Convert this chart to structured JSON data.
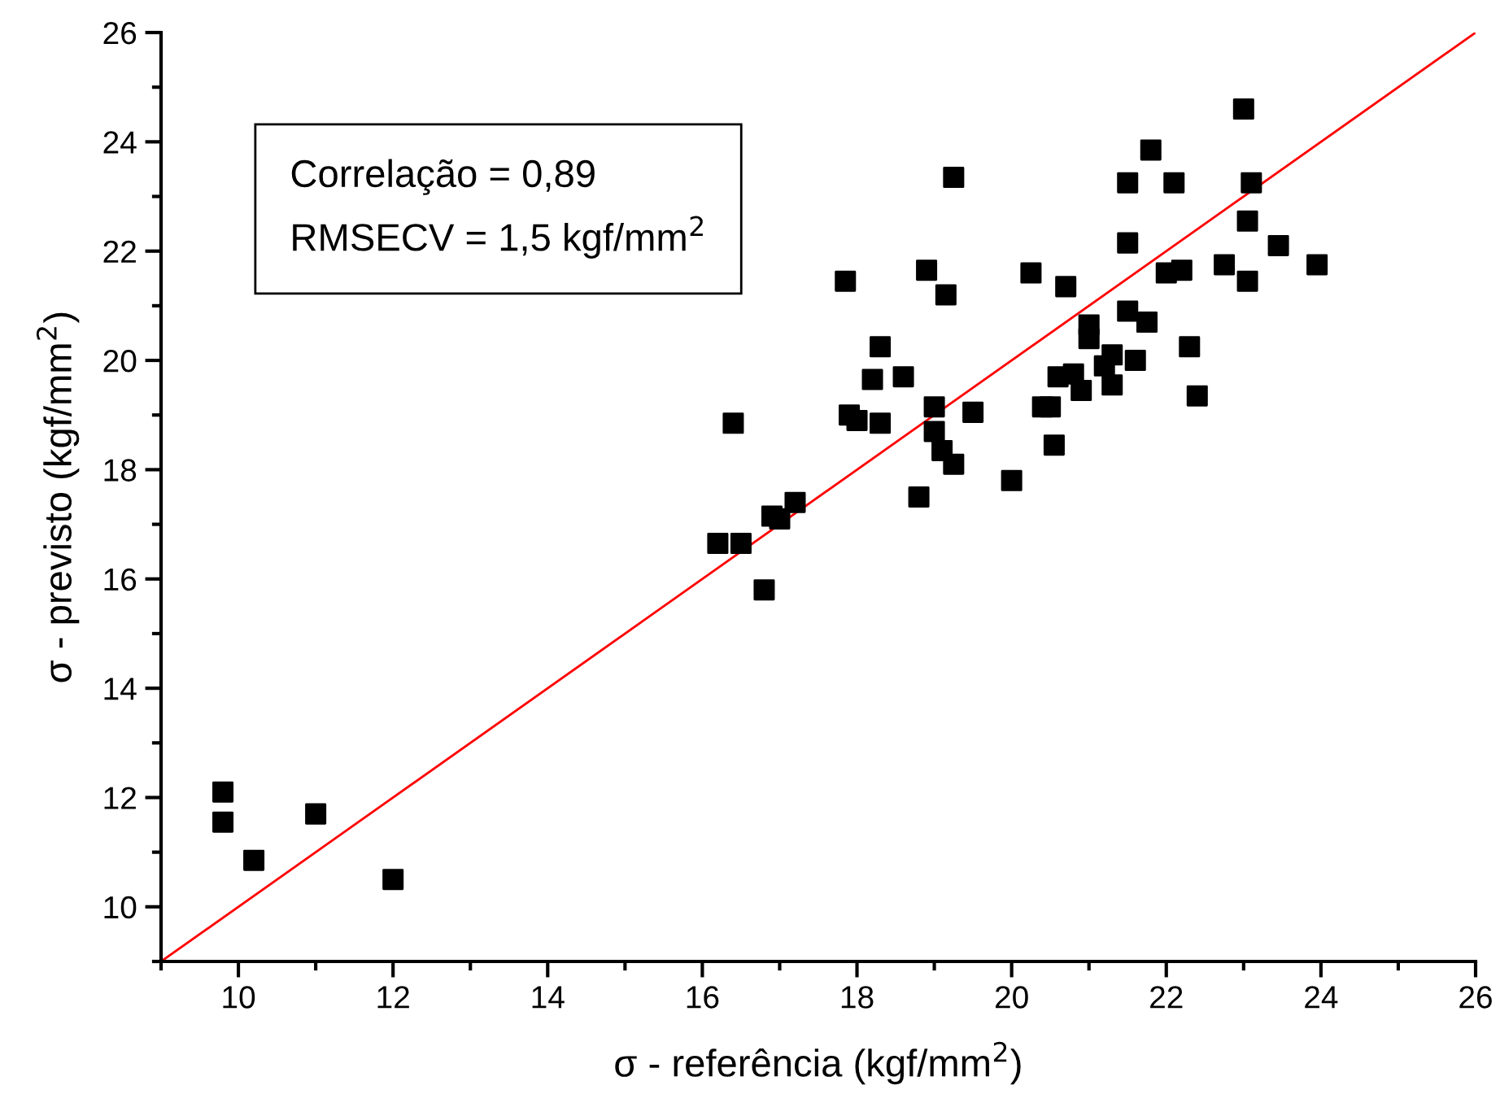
{
  "chart_data": {
    "type": "scatter",
    "xlabel": "σ - referência (kgf/mm$^{2}$)",
    "ylabel": "σ - previsto (kgf/mm$^{2}$)",
    "annotations": [
      "Correlação = 0,89",
      "RMSECV = 1,5 kgf/mm$^{2}$"
    ],
    "xlim": [
      9,
      26
    ],
    "xticks": [
      10,
      12,
      14,
      16,
      18,
      20,
      22,
      24,
      26
    ],
    "ylim": [
      9,
      26
    ],
    "yticks": [
      10,
      12,
      14,
      16,
      18,
      20,
      22,
      24,
      26
    ],
    "grid": false,
    "legend": false,
    "marker": "square",
    "series": [
      {
        "color": "#000000",
        "x": [
          9.8,
          9.8,
          10.2,
          11.0,
          12.0,
          16.2,
          16.5,
          16.4,
          16.8,
          16.9,
          17.0,
          17.2,
          17.85,
          17.9,
          18.0,
          18.2,
          18.3,
          18.3,
          18.6,
          18.8,
          18.9,
          19.0,
          19.0,
          19.1,
          19.15,
          19.25,
          19.25,
          19.5,
          20.0,
          20.25,
          20.4,
          20.5,
          20.55,
          20.6,
          20.7,
          20.8,
          20.9,
          21.0,
          21.0,
          21.2,
          21.3,
          21.3,
          21.5,
          21.5,
          21.5,
          21.6,
          21.75,
          21.8,
          22.0,
          22.1,
          22.2,
          22.3,
          22.4,
          22.75,
          23.0,
          23.05,
          23.05,
          23.1,
          23.45,
          23.95
        ],
        "values": [
          12.1,
          11.55,
          10.85,
          11.7,
          10.5,
          16.65,
          16.65,
          18.85,
          15.8,
          17.15,
          17.1,
          17.4,
          21.45,
          19.0,
          18.9,
          19.65,
          20.25,
          18.85,
          19.7,
          17.5,
          21.65,
          19.15,
          18.7,
          18.35,
          21.2,
          23.35,
          18.1,
          19.05,
          17.8,
          21.6,
          19.15,
          19.15,
          18.45,
          19.7,
          21.35,
          19.75,
          19.45,
          20.65,
          20.4,
          19.9,
          20.1,
          19.55,
          23.25,
          22.15,
          20.9,
          20.0,
          20.7,
          23.85,
          21.6,
          23.25,
          21.65,
          20.25,
          19.35,
          21.75,
          24.6,
          22.55,
          21.45,
          23.25,
          22.1,
          21.75
        ]
      },
      {
        "type": "line",
        "color": "#ff0000",
        "marker": "none",
        "x": [
          9,
          26
        ],
        "values": [
          9,
          26
        ]
      }
    ]
  }
}
